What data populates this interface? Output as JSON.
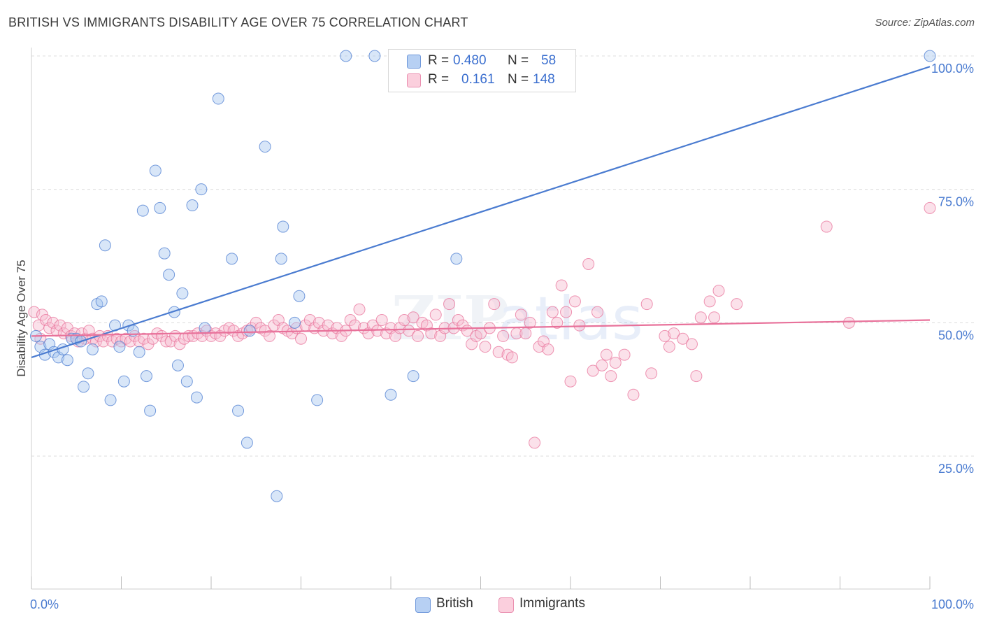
{
  "title": "BRITISH VS IMMIGRANTS DISABILITY AGE OVER 75 CORRELATION CHART",
  "source": "Source: ZipAtlas.com",
  "legend": {
    "r_label": "R =",
    "n_label": "N =",
    "rows": [
      {
        "r": "0.480",
        "n": "58"
      },
      {
        "r": "0.161",
        "n": "148"
      }
    ]
  },
  "chart_data": {
    "type": "scatter",
    "title": "BRITISH VS IMMIGRANTS DISABILITY AGE OVER 75 CORRELATION CHART",
    "xlabel": "",
    "ylabel": "Disability Age Over 75",
    "xlim": [
      0,
      100
    ],
    "ylim": [
      0,
      104
    ],
    "x_tick_labels": [
      "0.0%",
      "100.0%"
    ],
    "y_ticks": [
      25,
      50,
      75,
      100
    ],
    "y_tick_labels": [
      "25.0%",
      "50.0%",
      "75.0%",
      "100.0%"
    ],
    "grid": true,
    "legend_position": "bottom-center",
    "series": [
      {
        "name": "British",
        "color": "#4a7bd0",
        "fill": "#a9c8f0",
        "trend": {
          "x": [
            0,
            100
          ],
          "y": [
            43.5,
            98.0
          ]
        },
        "points": [
          {
            "x": 0.5,
            "y": 47.5
          },
          {
            "x": 1.0,
            "y": 45.5
          },
          {
            "x": 1.5,
            "y": 44.0
          },
          {
            "x": 2.0,
            "y": 46.0
          },
          {
            "x": 2.5,
            "y": 44.5
          },
          {
            "x": 3.0,
            "y": 43.5
          },
          {
            "x": 3.5,
            "y": 45.0
          },
          {
            "x": 4.0,
            "y": 43.0
          },
          {
            "x": 4.5,
            "y": 47.0
          },
          {
            "x": 5.0,
            "y": 47.0
          },
          {
            "x": 5.5,
            "y": 46.5
          },
          {
            "x": 5.8,
            "y": 38.0
          },
          {
            "x": 6.3,
            "y": 40.5
          },
          {
            "x": 6.8,
            "y": 45.0
          },
          {
            "x": 7.3,
            "y": 53.5
          },
          {
            "x": 7.8,
            "y": 54.0
          },
          {
            "x": 8.2,
            "y": 64.5
          },
          {
            "x": 8.8,
            "y": 35.5
          },
          {
            "x": 9.3,
            "y": 49.5
          },
          {
            "x": 9.8,
            "y": 45.5
          },
          {
            "x": 10.3,
            "y": 39.0
          },
          {
            "x": 10.8,
            "y": 49.5
          },
          {
            "x": 11.3,
            "y": 48.5
          },
          {
            "x": 12.0,
            "y": 44.5
          },
          {
            "x": 12.4,
            "y": 71.0
          },
          {
            "x": 12.8,
            "y": 40.0
          },
          {
            "x": 13.2,
            "y": 33.5
          },
          {
            "x": 13.8,
            "y": 78.5
          },
          {
            "x": 14.3,
            "y": 71.5
          },
          {
            "x": 14.8,
            "y": 63.0
          },
          {
            "x": 15.3,
            "y": 59.0
          },
          {
            "x": 15.9,
            "y": 52.0
          },
          {
            "x": 16.3,
            "y": 42.0
          },
          {
            "x": 16.8,
            "y": 55.5
          },
          {
            "x": 17.3,
            "y": 39.0
          },
          {
            "x": 17.9,
            "y": 72.0
          },
          {
            "x": 18.4,
            "y": 36.0
          },
          {
            "x": 18.9,
            "y": 75.0
          },
          {
            "x": 19.3,
            "y": 49.0
          },
          {
            "x": 20.8,
            "y": 92.0
          },
          {
            "x": 22.3,
            "y": 62.0
          },
          {
            "x": 23.0,
            "y": 33.5
          },
          {
            "x": 24.0,
            "y": 27.5
          },
          {
            "x": 24.3,
            "y": 48.5
          },
          {
            "x": 26.0,
            "y": 83.0
          },
          {
            "x": 27.3,
            "y": 17.5
          },
          {
            "x": 27.8,
            "y": 62.0
          },
          {
            "x": 28.0,
            "y": 68.0
          },
          {
            "x": 29.3,
            "y": 50.0
          },
          {
            "x": 29.8,
            "y": 55.0
          },
          {
            "x": 31.8,
            "y": 35.5
          },
          {
            "x": 35.0,
            "y": 100.0
          },
          {
            "x": 38.2,
            "y": 100.0
          },
          {
            "x": 40.0,
            "y": 36.5
          },
          {
            "x": 42.5,
            "y": 40.0
          },
          {
            "x": 47.3,
            "y": 62.0
          },
          {
            "x": 52.0,
            "y": 100.0
          },
          {
            "x": 100.0,
            "y": 100.0
          }
        ]
      },
      {
        "name": "Immigrants",
        "color": "#e8719a",
        "fill": "#f7bcd0",
        "trend": {
          "x": [
            0,
            100
          ],
          "y": [
            47.5,
            50.5
          ]
        },
        "points": [
          {
            "x": 0.3,
            "y": 52.0
          },
          {
            "x": 0.8,
            "y": 49.5
          },
          {
            "x": 1.2,
            "y": 51.5
          },
          {
            "x": 1.6,
            "y": 50.5
          },
          {
            "x": 2.0,
            "y": 49.0
          },
          {
            "x": 2.4,
            "y": 50.0
          },
          {
            "x": 2.8,
            "y": 48.5
          },
          {
            "x": 3.2,
            "y": 49.5
          },
          {
            "x": 3.6,
            "y": 48.0
          },
          {
            "x": 4.0,
            "y": 49.0
          },
          {
            "x": 4.4,
            "y": 47.5
          },
          {
            "x": 4.8,
            "y": 48.0
          },
          {
            "x": 5.2,
            "y": 46.5
          },
          {
            "x": 5.6,
            "y": 48.0
          },
          {
            "x": 6.0,
            "y": 47.0
          },
          {
            "x": 6.4,
            "y": 48.5
          },
          {
            "x": 6.8,
            "y": 47.0
          },
          {
            "x": 7.2,
            "y": 46.5
          },
          {
            "x": 7.6,
            "y": 47.5
          },
          {
            "x": 8.0,
            "y": 46.5
          },
          {
            "x": 8.5,
            "y": 47.5
          },
          {
            "x": 9.0,
            "y": 46.5
          },
          {
            "x": 9.5,
            "y": 47.0
          },
          {
            "x": 10.0,
            "y": 46.5
          },
          {
            "x": 10.5,
            "y": 47.0
          },
          {
            "x": 11.0,
            "y": 46.5
          },
          {
            "x": 11.5,
            "y": 47.5
          },
          {
            "x": 12.0,
            "y": 46.5
          },
          {
            "x": 12.5,
            "y": 47.0
          },
          {
            "x": 13.0,
            "y": 46.0
          },
          {
            "x": 13.5,
            "y": 47.0
          },
          {
            "x": 14.0,
            "y": 48.0
          },
          {
            "x": 14.5,
            "y": 47.5
          },
          {
            "x": 15.0,
            "y": 46.5
          },
          {
            "x": 15.5,
            "y": 46.5
          },
          {
            "x": 16.0,
            "y": 47.5
          },
          {
            "x": 16.5,
            "y": 46.0
          },
          {
            "x": 17.0,
            "y": 47.0
          },
          {
            "x": 17.5,
            "y": 47.5
          },
          {
            "x": 18.0,
            "y": 47.5
          },
          {
            "x": 18.5,
            "y": 48.0
          },
          {
            "x": 19.0,
            "y": 47.5
          },
          {
            "x": 19.5,
            "y": 48.5
          },
          {
            "x": 20.0,
            "y": 47.5
          },
          {
            "x": 20.5,
            "y": 48.0
          },
          {
            "x": 21.0,
            "y": 47.5
          },
          {
            "x": 21.5,
            "y": 48.5
          },
          {
            "x": 22.0,
            "y": 49.0
          },
          {
            "x": 22.5,
            "y": 48.5
          },
          {
            "x": 23.0,
            "y": 47.5
          },
          {
            "x": 23.5,
            "y": 48.0
          },
          {
            "x": 24.0,
            "y": 48.5
          },
          {
            "x": 24.5,
            "y": 49.0
          },
          {
            "x": 25.0,
            "y": 50.0
          },
          {
            "x": 25.5,
            "y": 49.0
          },
          {
            "x": 26.0,
            "y": 48.5
          },
          {
            "x": 26.5,
            "y": 47.5
          },
          {
            "x": 27.0,
            "y": 49.5
          },
          {
            "x": 27.5,
            "y": 50.5
          },
          {
            "x": 28.0,
            "y": 49.0
          },
          {
            "x": 28.5,
            "y": 48.5
          },
          {
            "x": 29.0,
            "y": 48.0
          },
          {
            "x": 29.5,
            "y": 49.0
          },
          {
            "x": 30.0,
            "y": 47.0
          },
          {
            "x": 30.5,
            "y": 49.5
          },
          {
            "x": 31.0,
            "y": 50.5
          },
          {
            "x": 31.5,
            "y": 49.0
          },
          {
            "x": 32.0,
            "y": 50.0
          },
          {
            "x": 32.5,
            "y": 48.5
          },
          {
            "x": 33.0,
            "y": 49.5
          },
          {
            "x": 33.5,
            "y": 48.0
          },
          {
            "x": 34.0,
            "y": 49.0
          },
          {
            "x": 34.5,
            "y": 47.5
          },
          {
            "x": 35.0,
            "y": 48.5
          },
          {
            "x": 35.5,
            "y": 50.5
          },
          {
            "x": 36.0,
            "y": 49.5
          },
          {
            "x": 36.5,
            "y": 52.5
          },
          {
            "x": 37.0,
            "y": 49.0
          },
          {
            "x": 37.5,
            "y": 48.0
          },
          {
            "x": 38.0,
            "y": 49.5
          },
          {
            "x": 38.5,
            "y": 48.5
          },
          {
            "x": 39.0,
            "y": 50.5
          },
          {
            "x": 39.5,
            "y": 48.0
          },
          {
            "x": 40.0,
            "y": 49.0
          },
          {
            "x": 40.5,
            "y": 47.5
          },
          {
            "x": 41.0,
            "y": 49.0
          },
          {
            "x": 41.5,
            "y": 50.5
          },
          {
            "x": 42.0,
            "y": 48.5
          },
          {
            "x": 42.5,
            "y": 51.0
          },
          {
            "x": 43.0,
            "y": 47.5
          },
          {
            "x": 43.5,
            "y": 50.0
          },
          {
            "x": 44.0,
            "y": 49.5
          },
          {
            "x": 44.5,
            "y": 48.0
          },
          {
            "x": 45.0,
            "y": 51.5
          },
          {
            "x": 45.5,
            "y": 47.5
          },
          {
            "x": 46.0,
            "y": 49.0
          },
          {
            "x": 46.5,
            "y": 53.5
          },
          {
            "x": 47.0,
            "y": 49.0
          },
          {
            "x": 47.5,
            "y": 50.5
          },
          {
            "x": 48.0,
            "y": 49.5
          },
          {
            "x": 48.5,
            "y": 48.5
          },
          {
            "x": 49.0,
            "y": 46.0
          },
          {
            "x": 49.5,
            "y": 47.5
          },
          {
            "x": 50.0,
            "y": 48.0
          },
          {
            "x": 50.5,
            "y": 45.5
          },
          {
            "x": 51.0,
            "y": 49.0
          },
          {
            "x": 51.5,
            "y": 53.5
          },
          {
            "x": 52.0,
            "y": 44.5
          },
          {
            "x": 52.5,
            "y": 47.5
          },
          {
            "x": 53.0,
            "y": 44.0
          },
          {
            "x": 53.5,
            "y": 43.5
          },
          {
            "x": 54.0,
            "y": 48.0
          },
          {
            "x": 54.5,
            "y": 51.5
          },
          {
            "x": 55.0,
            "y": 48.0
          },
          {
            "x": 55.5,
            "y": 50.0
          },
          {
            "x": 56.0,
            "y": 27.5
          },
          {
            "x": 56.5,
            "y": 45.5
          },
          {
            "x": 57.0,
            "y": 46.5
          },
          {
            "x": 57.5,
            "y": 45.0
          },
          {
            "x": 58.0,
            "y": 52.0
          },
          {
            "x": 58.5,
            "y": 50.0
          },
          {
            "x": 59.0,
            "y": 57.0
          },
          {
            "x": 59.5,
            "y": 52.0
          },
          {
            "x": 60.0,
            "y": 39.0
          },
          {
            "x": 60.5,
            "y": 54.0
          },
          {
            "x": 61.0,
            "y": 49.5
          },
          {
            "x": 62.0,
            "y": 61.0
          },
          {
            "x": 62.5,
            "y": 41.0
          },
          {
            "x": 63.0,
            "y": 52.0
          },
          {
            "x": 63.5,
            "y": 42.0
          },
          {
            "x": 64.0,
            "y": 44.0
          },
          {
            "x": 64.5,
            "y": 40.0
          },
          {
            "x": 65.0,
            "y": 42.5
          },
          {
            "x": 66.0,
            "y": 44.0
          },
          {
            "x": 67.0,
            "y": 36.5
          },
          {
            "x": 68.5,
            "y": 53.5
          },
          {
            "x": 69.0,
            "y": 40.5
          },
          {
            "x": 70.5,
            "y": 47.5
          },
          {
            "x": 71.0,
            "y": 45.5
          },
          {
            "x": 71.5,
            "y": 48.0
          },
          {
            "x": 72.5,
            "y": 47.0
          },
          {
            "x": 73.5,
            "y": 46.0
          },
          {
            "x": 74.0,
            "y": 40.0
          },
          {
            "x": 74.5,
            "y": 51.0
          },
          {
            "x": 75.5,
            "y": 54.0
          },
          {
            "x": 76.0,
            "y": 51.0
          },
          {
            "x": 76.5,
            "y": 56.0
          },
          {
            "x": 78.5,
            "y": 53.5
          },
          {
            "x": 88.5,
            "y": 68.0
          },
          {
            "x": 91.0,
            "y": 50.0
          },
          {
            "x": 100.0,
            "y": 71.5
          },
          {
            "x": 1.0,
            "y": 47.0
          }
        ]
      }
    ]
  },
  "bottom_legend": [
    "British",
    "Immigrants"
  ],
  "watermark": "ZIPatlas"
}
